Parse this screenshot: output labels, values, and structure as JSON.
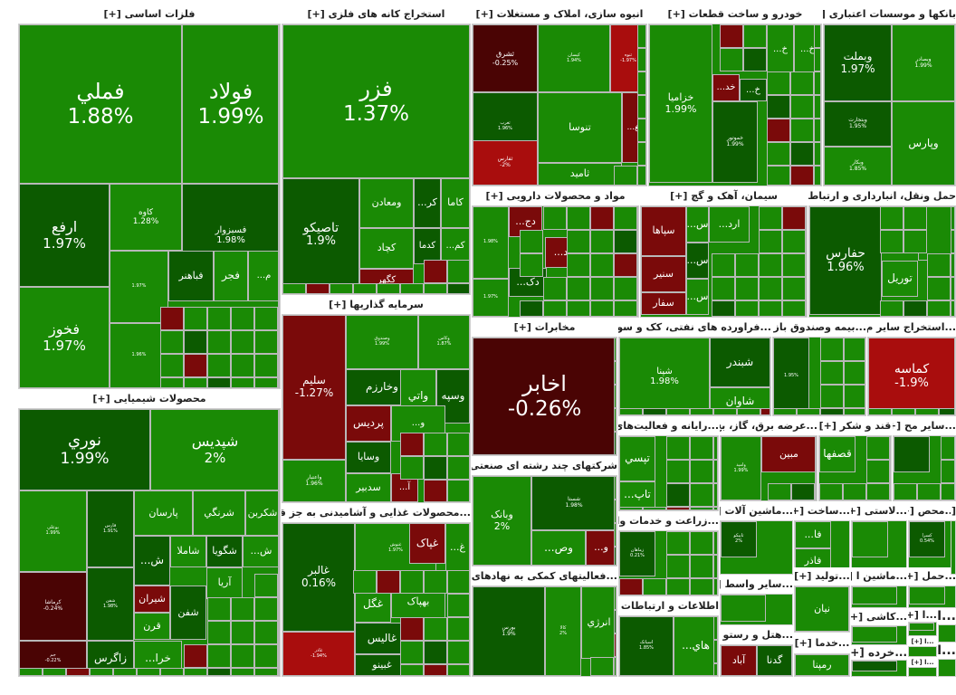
{
  "colors": {
    "up": "#1a8a05",
    "up_dark": "#0c5a00",
    "down": "#7a0a0a",
    "down_dark": "#4a0404",
    "down_mid": "#a90d0d",
    "header_bg": "#ffffff",
    "border": "#b8b8b8"
  },
  "chart_data": {
    "type": "treemap",
    "title": "",
    "sectors": [
      {
        "name": "فلزات اساسی [+]",
        "tiles": [
          {
            "name": "فولاد",
            "change": "1.99%",
            "value": 1.99
          },
          {
            "name": "فملي",
            "change": "1.88%",
            "value": 1.88
          },
          {
            "name": "فسبزوار",
            "change": "1.98%",
            "value": 1.98
          },
          {
            "name": "کاوه",
            "change": "1.28%",
            "value": 1.28
          },
          {
            "name": "ارفع",
            "change": "1.97%",
            "value": 1.97
          },
          {
            "name": "فخوز",
            "change": "1.97%",
            "value": 1.97
          },
          {
            "name": "فجر",
            "change": "",
            "value": 1.5
          },
          {
            "name": "فباهنر",
            "change": "",
            "value": 1.5
          },
          {
            "name": "...م",
            "change": "",
            "value": 1.0
          },
          {
            "name": "",
            "change": "1.97%",
            "value": 1.97
          },
          {
            "name": "",
            "change": "1.96%",
            "value": 1.96
          }
        ]
      },
      {
        "name": "استخراج کانه های فلزی [+]",
        "tiles": [
          {
            "name": "فزر",
            "change": "1.37%",
            "value": 1.37
          },
          {
            "name": "تاصیکو",
            "change": "1.9%",
            "value": 1.9
          },
          {
            "name": "ومعادن",
            "change": "",
            "value": 1.5
          },
          {
            "name": "...کر",
            "change": "",
            "value": 1.5
          },
          {
            "name": "کاما",
            "change": "",
            "value": 1.5
          },
          {
            "name": "کچاد",
            "change": "",
            "value": 1.5
          },
          {
            "name": "کدما",
            "change": "",
            "value": 1.5
          },
          {
            "name": "...کم",
            "change": "",
            "value": 1.5
          },
          {
            "name": "کگهر",
            "change": "",
            "value": -1.0
          }
        ]
      },
      {
        "name": "انبوه سازی، املاک و مستغلات [+]",
        "tiles": [
          {
            "name": "ثشرق",
            "change": "-0.25%",
            "value": -0.25
          },
          {
            "name": "کیسان",
            "change": "1.94%",
            "value": 1.94
          },
          {
            "name": "ثنوه",
            "change": "-1.97%",
            "value": -1.97
          },
          {
            "name": "...تغ",
            "change": "",
            "value": -1.0
          },
          {
            "name": "تنوسا",
            "change": "",
            "value": 1.5
          },
          {
            "name": "ثغرب",
            "change": "1.96%",
            "value": 1.96
          },
          {
            "name": "ثامید",
            "change": "",
            "value": 1.5
          },
          {
            "name": "ثفارس",
            "change": "-2%",
            "value": -2.0
          }
        ]
      },
      {
        "name": "خودرو و ساخت قطعات [+]",
        "tiles": [
          {
            "name": "خزامیا",
            "change": "1.99%",
            "value": 1.99
          },
          {
            "name": "خموتور",
            "change": "1.99%",
            "value": 1.99
          },
          {
            "name": "...خ",
            "change": "",
            "value": 1.5
          },
          {
            "name": "...خ",
            "change": "",
            "value": 1.5
          },
          {
            "name": "...خ",
            "change": "",
            "value": 1.5
          },
          {
            "name": "...خد",
            "change": "",
            "value": -1.0
          }
        ]
      },
      {
        "name": "بانکها و موسسات اعتباری [+]",
        "tiles": [
          {
            "name": "وبملت",
            "change": "1.97%",
            "value": 1.97
          },
          {
            "name": "وبصادر",
            "change": "1.99%",
            "value": 1.99
          },
          {
            "name": "وپارس",
            "change": "",
            "value": 1.5
          },
          {
            "name": "وبتجارت",
            "change": "1.95%",
            "value": 1.95
          },
          {
            "name": "وبکار",
            "change": "1.85%",
            "value": 1.85
          }
        ]
      },
      {
        "name": "مواد و محصولات دارویی [+]",
        "tiles": [
          {
            "name": "...دج",
            "change": "",
            "value": -1.0
          },
          {
            "name": "...د",
            "change": "",
            "value": -1.0
          },
          {
            "name": "...دک",
            "change": "",
            "value": 1.5
          },
          {
            "name": "",
            "change": "1.98%",
            "value": 1.98
          },
          {
            "name": "",
            "change": "1.97%",
            "value": 1.97
          }
        ]
      },
      {
        "name": "سیمان، آهک و گچ [+]",
        "tiles": [
          {
            "name": "سپاها",
            "change": "",
            "value": -1.0
          },
          {
            "name": "سنیر",
            "change": "",
            "value": -1.0
          },
          {
            "name": "سفار",
            "change": "",
            "value": -1.0
          },
          {
            "name": "...س",
            "change": "",
            "value": 1.5
          },
          {
            "name": "...ارد",
            "change": "",
            "value": 1.5
          },
          {
            "name": "...س",
            "change": "",
            "value": 1.5
          },
          {
            "name": "...س",
            "change": "",
            "value": 1.5
          }
        ]
      },
      {
        "name": "حمل ونقل، انبارداری و ارتباطات [+]",
        "tiles": [
          {
            "name": "حفارس",
            "change": "1.96%",
            "value": 1.96
          },
          {
            "name": "توریل",
            "change": "",
            "value": 1.0
          },
          {
            "name": "",
            "change": "",
            "value": 1.5
          }
        ]
      },
      {
        "name": "سرمایه گذاریها [+]",
        "tiles": [
          {
            "name": "سلیم",
            "change": "-1.27%",
            "value": -1.27
          },
          {
            "name": "وصندوق",
            "change": "1.99%",
            "value": 1.99
          },
          {
            "name": "وکاس",
            "change": "1.87%",
            "value": 1.87
          },
          {
            "name": "وخارزم",
            "change": "",
            "value": 1.5
          },
          {
            "name": "واتي",
            "change": "",
            "value": 1.5
          },
          {
            "name": "وسپه",
            "change": "",
            "value": 1.5
          },
          {
            "name": "پردیس",
            "change": "",
            "value": -1.0
          },
          {
            "name": "...و",
            "change": "",
            "value": 1.5
          },
          {
            "name": "وسایا",
            "change": "",
            "value": 1.5
          },
          {
            "name": "سدبیر",
            "change": "",
            "value": 1.5
          },
          {
            "name": "واعتبار",
            "change": "1.96%",
            "value": 1.96
          },
          {
            "name": "...آ",
            "change": "",
            "value": -1.0
          }
        ]
      },
      {
        "name": "مخابرات [+]",
        "tiles": [
          {
            "name": "اخابر",
            "change": "-0.26%",
            "value": -0.26
          }
        ]
      },
      {
        "name": "...فراورده های نفتی، کک و سوخت [+]",
        "tiles": [
          {
            "name": "شپنا",
            "change": "1.98%",
            "value": 1.98
          },
          {
            "name": "شبندر",
            "change": "",
            "value": 1.5
          },
          {
            "name": "شاوان",
            "change": "",
            "value": 1.5
          }
        ]
      },
      {
        "name": "...بیمه وصندوق باز [+]",
        "tiles": [
          {
            "name": "",
            "change": "1.95%",
            "value": 1.95
          }
        ]
      },
      {
        "name": "...استخراج سایر م [+]",
        "tiles": [
          {
            "name": "کماسه",
            "change": "-1.9%",
            "value": -1.9
          }
        ]
      },
      {
        "name": "محصولات شیمیایی [+]",
        "tiles": [
          {
            "name": "نوري",
            "change": "1.99%",
            "value": 1.99
          },
          {
            "name": "شپدیس",
            "change": "2%",
            "value": 2.0
          },
          {
            "name": "بوعلي",
            "change": "1.99%",
            "value": 1.99
          },
          {
            "name": "شفن",
            "change": "1.98%",
            "value": 1.98
          },
          {
            "name": "پارسان",
            "change": "",
            "value": 1.5
          },
          {
            "name": "شرنگي",
            "change": "",
            "value": 1.5
          },
          {
            "name": "شکربن",
            "change": "",
            "value": 1.5
          },
          {
            "name": "...ش",
            "change": "",
            "value": 1.5
          },
          {
            "name": "شاملا",
            "change": "",
            "value": 1.0
          },
          {
            "name": "شگویا",
            "change": "",
            "value": 1.0
          },
          {
            "name": "...ش",
            "change": "",
            "value": 1.5
          },
          {
            "name": "کرماشا",
            "change": "-0.24%",
            "value": -0.24
          },
          {
            "name": "فارس",
            "change": "1.91%",
            "value": 1.91
          },
          {
            "name": "شیران",
            "change": "",
            "value": -1.0
          },
          {
            "name": "آریا",
            "change": "",
            "value": 1.5
          },
          {
            "name": "قرن",
            "change": "",
            "value": 1.0
          },
          {
            "name": "شفن",
            "change": "",
            "value": 1.5
          },
          {
            "name": "جم",
            "change": "-0.22%",
            "value": -0.22
          },
          {
            "name": "زاگرس",
            "change": "",
            "value": 1.5
          },
          {
            "name": "...خرا",
            "change": "",
            "value": 1.5
          }
        ]
      },
      {
        "name": "...محصولات غذایی و آشامیدنی به جز قند و [+]",
        "tiles": [
          {
            "name": "غالبر",
            "change": "0.16%",
            "value": 0.16
          },
          {
            "name": "غنوش",
            "change": "1.97%",
            "value": 1.97
          },
          {
            "name": "غپاک",
            "change": "",
            "value": -1.0
          },
          {
            "name": "...غ",
            "change": "",
            "value": 1.5
          },
          {
            "name": "بهپاک",
            "change": "",
            "value": 1.5
          },
          {
            "name": "غگل",
            "change": "",
            "value": 1.5
          },
          {
            "name": "غالیس",
            "change": "",
            "value": 1.5
          },
          {
            "name": "غاذر",
            "change": "-1.94%",
            "value": -1.94
          },
          {
            "name": "غبینو",
            "change": "",
            "value": 1.5
          }
        ]
      },
      {
        "name": "شرکتهای چند رشته ای صنعتی [+]",
        "tiles": [
          {
            "name": "وبانک",
            "change": "2%",
            "value": 2.0
          },
          {
            "name": "شستا",
            "change": "1.98%",
            "value": 1.98
          },
          {
            "name": "...وص",
            "change": "",
            "value": 1.5
          },
          {
            "name": "...و",
            "change": "",
            "value": -1.0
          }
        ]
      },
      {
        "name": "...فعالیتهای کمکی به نهادهای مال [+]",
        "tiles": [
          {
            "name": "بورس",
            "change": "1.9%",
            "value": 1.9
          },
          {
            "name": "کالا",
            "change": "2%",
            "value": 2.0
          },
          {
            "name": "انرژي",
            "change": "",
            "value": 1.5
          }
        ]
      },
      {
        "name": "...رایانه و فعالیت‌های [+]",
        "tiles": [
          {
            "name": "تپسي",
            "change": "",
            "value": 1.5
          },
          {
            "name": "...تاپ",
            "change": "",
            "value": 1.5
          }
        ]
      },
      {
        "name": "...عرضه برق، گاز، بخ [+]",
        "tiles": [
          {
            "name": "مبین",
            "change": "",
            "value": -1.0
          },
          {
            "name": "وامید",
            "change": "1.99%",
            "value": 1.99
          }
        ]
      },
      {
        "name": "قند و شکر [+]",
        "tiles": [
          {
            "name": "قصفها",
            "change": "",
            "value": 1.5
          }
        ]
      },
      {
        "name": "...سایر مح [+]",
        "tiles": [
          {
            "name": "",
            "change": "",
            "value": 1.5
          }
        ]
      },
      {
        "name": "...زراعت و خدمات وا [+]",
        "tiles": [
          {
            "name": "زماهان",
            "change": "0.21%",
            "value": 0.21
          }
        ]
      },
      {
        "name": "...ماشین آلات [+]",
        "tiles": [
          {
            "name": "تاپیکو",
            "change": "2%",
            "value": 2.0
          }
        ]
      },
      {
        "name": "...ساخت [+]",
        "tiles": [
          {
            "name": "...فا",
            "change": "",
            "value": 1.5
          },
          {
            "name": "فاذر",
            "change": "",
            "value": 1.5
          }
        ]
      },
      {
        "name": "...لاستی [+]",
        "tiles": [
          {
            "name": "",
            "change": "",
            "value": 1.5
          }
        ]
      },
      {
        "name": "...محص [+]",
        "tiles": [
          {
            "name": "کسرا",
            "change": "0.54%",
            "value": 0.54
          }
        ]
      },
      {
        "name": "...تولید [+]",
        "tiles": [
          {
            "name": "نیان",
            "change": "",
            "value": 1.5
          }
        ]
      },
      {
        "name": "...ماشین ا [+]",
        "tiles": [
          {
            "name": "",
            "change": "",
            "value": 1.5
          }
        ]
      },
      {
        "name": "...حمل [+]",
        "tiles": [
          {
            "name": "",
            "change": "",
            "value": 1.5
          }
        ]
      },
      {
        "name": "اطلاعات و ارتباطات [+]",
        "tiles": [
          {
            "name": "اسیاتک",
            "change": "1.85%",
            "value": 1.85
          },
          {
            "name": "...هاي",
            "change": "",
            "value": 1.5
          }
        ]
      },
      {
        "name": "...سایر واسط [+]",
        "tiles": [
          {
            "name": "",
            "change": "",
            "value": 1.5
          }
        ]
      },
      {
        "name": "...هتل و رستو [+]",
        "tiles": [
          {
            "name": "گدنا",
            "change": "",
            "value": 1.5
          },
          {
            "name": "آباد",
            "change": "",
            "value": -1.0
          }
        ]
      },
      {
        "name": "...خدما [+]",
        "tiles": [
          {
            "name": "رمپنا",
            "change": "",
            "value": 1.5
          }
        ]
      },
      {
        "name": "...کاشی [+]",
        "tiles": [
          {
            "name": "",
            "change": "",
            "value": 1.5
          }
        ]
      },
      {
        "name": "...خرده [+]",
        "tiles": [
          {
            "name": "",
            "change": "",
            "value": 1.5
          }
        ]
      },
      {
        "name": "...ا [+]",
        "tiles": [
          {
            "name": "",
            "change": "",
            "value": 1.5
          }
        ]
      },
      {
        "name": "...ا [+]",
        "tiles": []
      },
      {
        "name": "...ا [+]",
        "tiles": []
      },
      {
        "name": "...ا [+]",
        "tiles": []
      },
      {
        "name": "...ا [+]",
        "tiles": []
      },
      {
        "name": "[+]",
        "tiles": []
      }
    ]
  }
}
